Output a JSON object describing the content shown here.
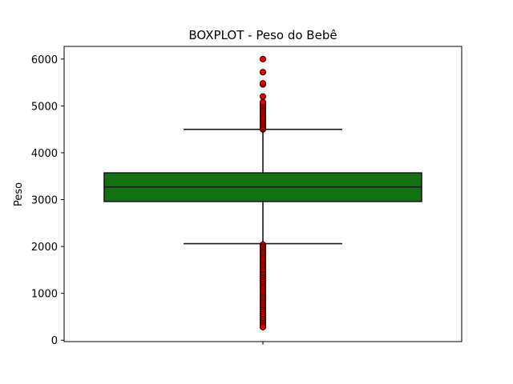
{
  "chart_data": {
    "type": "boxplot",
    "title": "BOXPLOT - Peso do Bebê",
    "xlabel": "",
    "ylabel": "Peso",
    "ylim": [
      -30,
      6270
    ],
    "yticks": [
      0,
      1000,
      2000,
      3000,
      4000,
      5000,
      6000
    ],
    "grid": false,
    "box": {
      "q1": 2960,
      "median": 3270,
      "q3": 3570,
      "whisker_low": 2060,
      "whisker_high": 4500,
      "fill_color": "#137013",
      "edge_color": "#1a1a1a"
    },
    "outliers_high": [
      4500,
      4520,
      4560,
      4600,
      4640,
      4680,
      4720,
      4760,
      4800,
      4840,
      4880,
      4920,
      4960,
      5000,
      5040,
      5080,
      5200,
      5460,
      5480,
      5720,
      6000
    ],
    "outliers_low": [
      2040,
      2000,
      1960,
      1920,
      1880,
      1840,
      1800,
      1760,
      1720,
      1680,
      1640,
      1600,
      1560,
      1520,
      1480,
      1440,
      1400,
      1360,
      1320,
      1280,
      1240,
      1200,
      1160,
      1120,
      1080,
      1040,
      1000,
      960,
      920,
      880,
      840,
      800,
      760,
      720,
      680,
      640,
      600,
      560,
      520,
      480,
      440,
      400,
      360,
      320,
      280
    ],
    "outlier_color": "#e00000"
  }
}
